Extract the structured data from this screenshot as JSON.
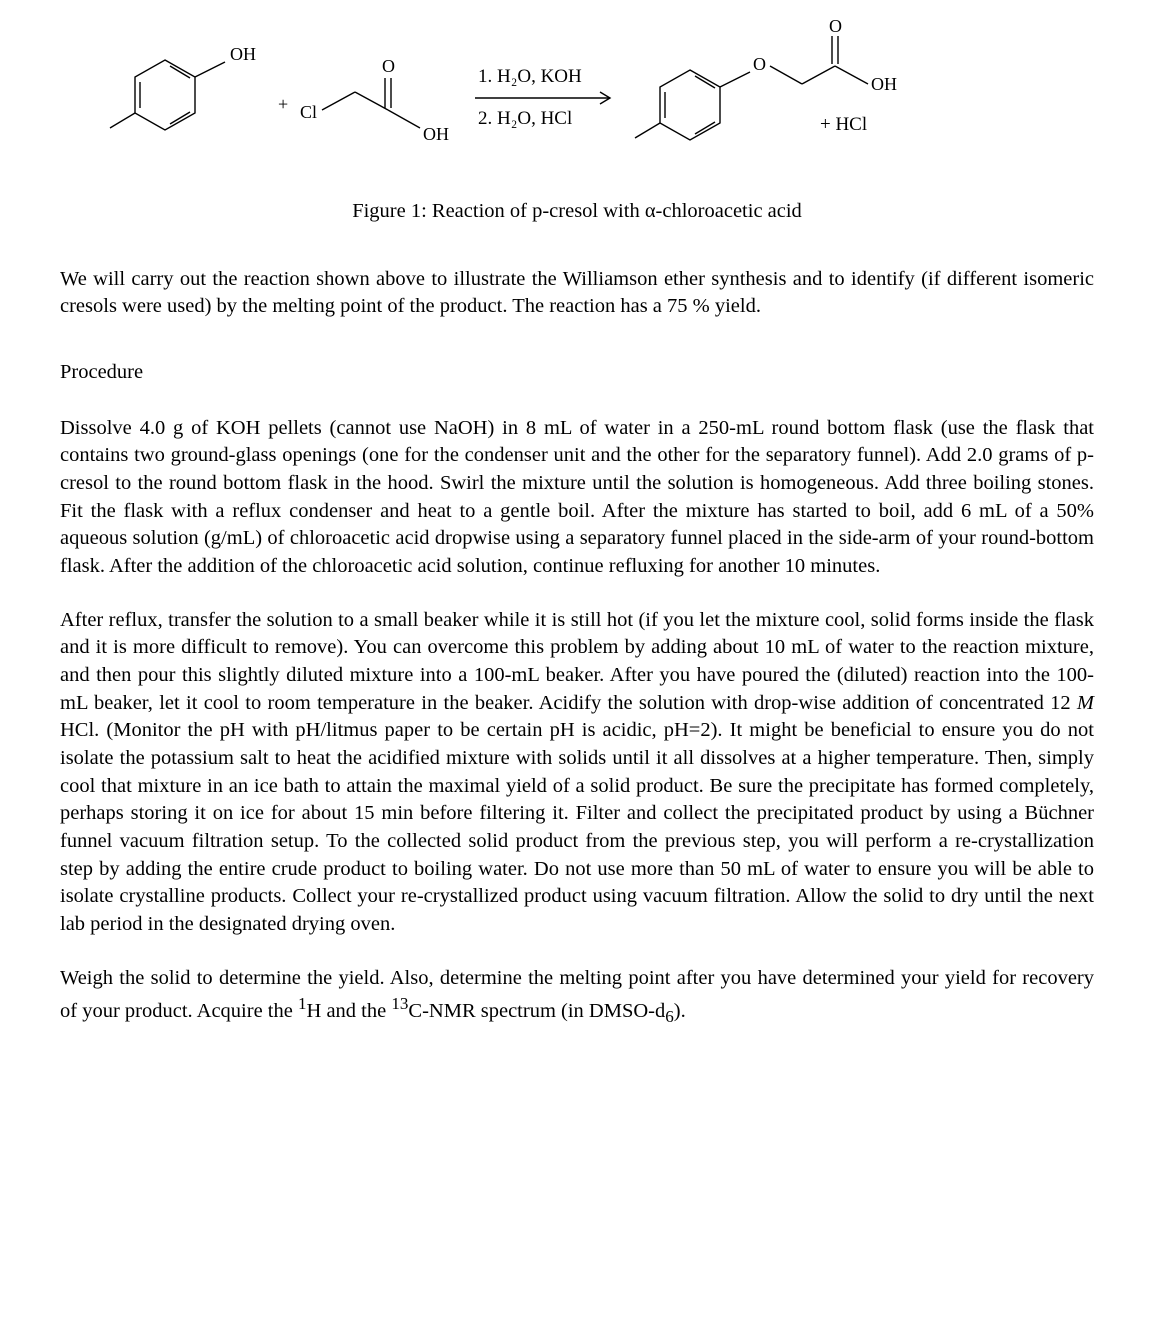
{
  "figure": {
    "caption": "Figure 1: Reaction of p-cresol with α-chloroacetic acid",
    "plus1": "+",
    "plus2": "+ HCl",
    "cond1": "1. H₂O, KOH",
    "cond2": "2. H₂O, HCl",
    "labels": {
      "OH_cresol": "OH",
      "Cl": "Cl",
      "O_dbl": "O",
      "OH_acid": "OH",
      "O_ether": "O",
      "O_prod_dbl": "O",
      "OH_prod": "OH"
    },
    "style": {
      "stroke": "#000000",
      "stroke_width": 1.4,
      "font_family": "Times New Roman",
      "font_size_atom": 18,
      "font_size_cond": 19
    }
  },
  "intro": "We will carry out the reaction shown above to illustrate the Williamson ether synthesis and to identify (if different isomeric cresols were used) by the melting point of the product. The reaction has a 75 % yield.",
  "procedure_head": "Procedure",
  "para1": "Dissolve 4.0 g of KOH pellets (cannot use NaOH) in 8 mL of water in a 250-mL round bottom flask (use the flask that contains two ground-glass openings (one for the condenser unit and the other for the separatory funnel). Add 2.0 grams of p-cresol to the round bottom flask in the hood. Swirl the mixture until the solution is homogeneous. Add three boiling stones. Fit the flask with a reflux condenser and heat to a gentle boil. After the mixture has started to boil, add 6 mL of a 50% aqueous solution (g/mL) of chloroacetic acid dropwise using a separatory funnel placed in the side-arm of your round-bottom flask. After the addition of the chloroacetic acid solution, continue refluxing for another 10 minutes.",
  "para2": "After reflux, transfer the solution to a small beaker while it is still hot (if you let the mixture cool, solid forms inside the flask and it is more difficult to remove). You can overcome this problem by adding about 10 mL of water to the reaction mixture, and then pour this slightly diluted mixture into a 100-mL beaker. After you have poured the (diluted) reaction into the 100-mL beaker, let it cool to room temperature in the beaker. Acidify the solution with drop-wise addition of concentrated 12 M HCl. (Monitor the pH with pH/litmus paper to be certain pH is acidic, pH=2). It might be beneficial to ensure you do not isolate the potassium salt to heat the acidified mixture with solids until it all dissolves at a higher temperature. Then, simply cool that mixture in an ice bath to attain the maximal yield of a solid product. Be sure the precipitate has formed completely, perhaps storing it on ice for about 15 min before filtering it. Filter and collect the precipitated product by using a Büchner funnel vacuum filtration setup. To the collected solid product from the previous step, you will perform a re-crystallization step by adding the entire crude product to boiling water. Do not use more than 50 mL of water to ensure you will be able to isolate crystalline products. Collect your re-crystallized product using vacuum filtration. Allow the solid to dry until the next lab period in the designated drying oven.",
  "para3_a": "Weigh the solid to determine the yield. Also, determine the melting point after you have determined your yield for recovery of your product. Acquire the ",
  "para3_b": "H and the ",
  "para3_c": "C-NMR spectrum (in DMSO-d",
  "para3_d": ").",
  "sup1": "1",
  "sup13": "13",
  "sub6": "6",
  "italic_M": "M"
}
